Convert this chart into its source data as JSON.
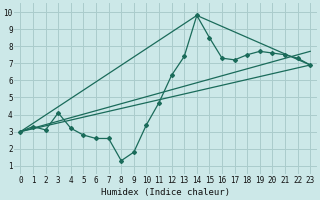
{
  "xlabel": "Humidex (Indice chaleur)",
  "bg_color": "#cce8e8",
  "grid_color": "#aacccc",
  "line_color": "#1a6b5a",
  "xlim": [
    -0.5,
    23.5
  ],
  "ylim": [
    0.5,
    10.5
  ],
  "xticks": [
    0,
    1,
    2,
    3,
    4,
    5,
    6,
    7,
    8,
    9,
    10,
    11,
    12,
    13,
    14,
    15,
    16,
    17,
    18,
    19,
    20,
    21,
    22,
    23
  ],
  "yticks": [
    1,
    2,
    3,
    4,
    5,
    6,
    7,
    8,
    9,
    10
  ],
  "line1_x": [
    0,
    1,
    2,
    3,
    4,
    5,
    6,
    7,
    8,
    9,
    10,
    11,
    12,
    13,
    14,
    15,
    16,
    17,
    18,
    19,
    20,
    21,
    22,
    23
  ],
  "line1_y": [
    3.0,
    3.3,
    3.1,
    4.1,
    3.2,
    2.8,
    2.6,
    2.6,
    1.3,
    1.8,
    3.4,
    4.7,
    6.3,
    7.4,
    9.8,
    8.5,
    7.3,
    7.2,
    7.5,
    7.7,
    7.6,
    7.5,
    7.3,
    6.9
  ],
  "line2_x": [
    0,
    23
  ],
  "line2_y": [
    3.0,
    6.9
  ],
  "line3_x": [
    0,
    14,
    23
  ],
  "line3_y": [
    3.0,
    9.8,
    6.9
  ],
  "line4_x": [
    0,
    23
  ],
  "line4_y": [
    3.0,
    7.7
  ]
}
